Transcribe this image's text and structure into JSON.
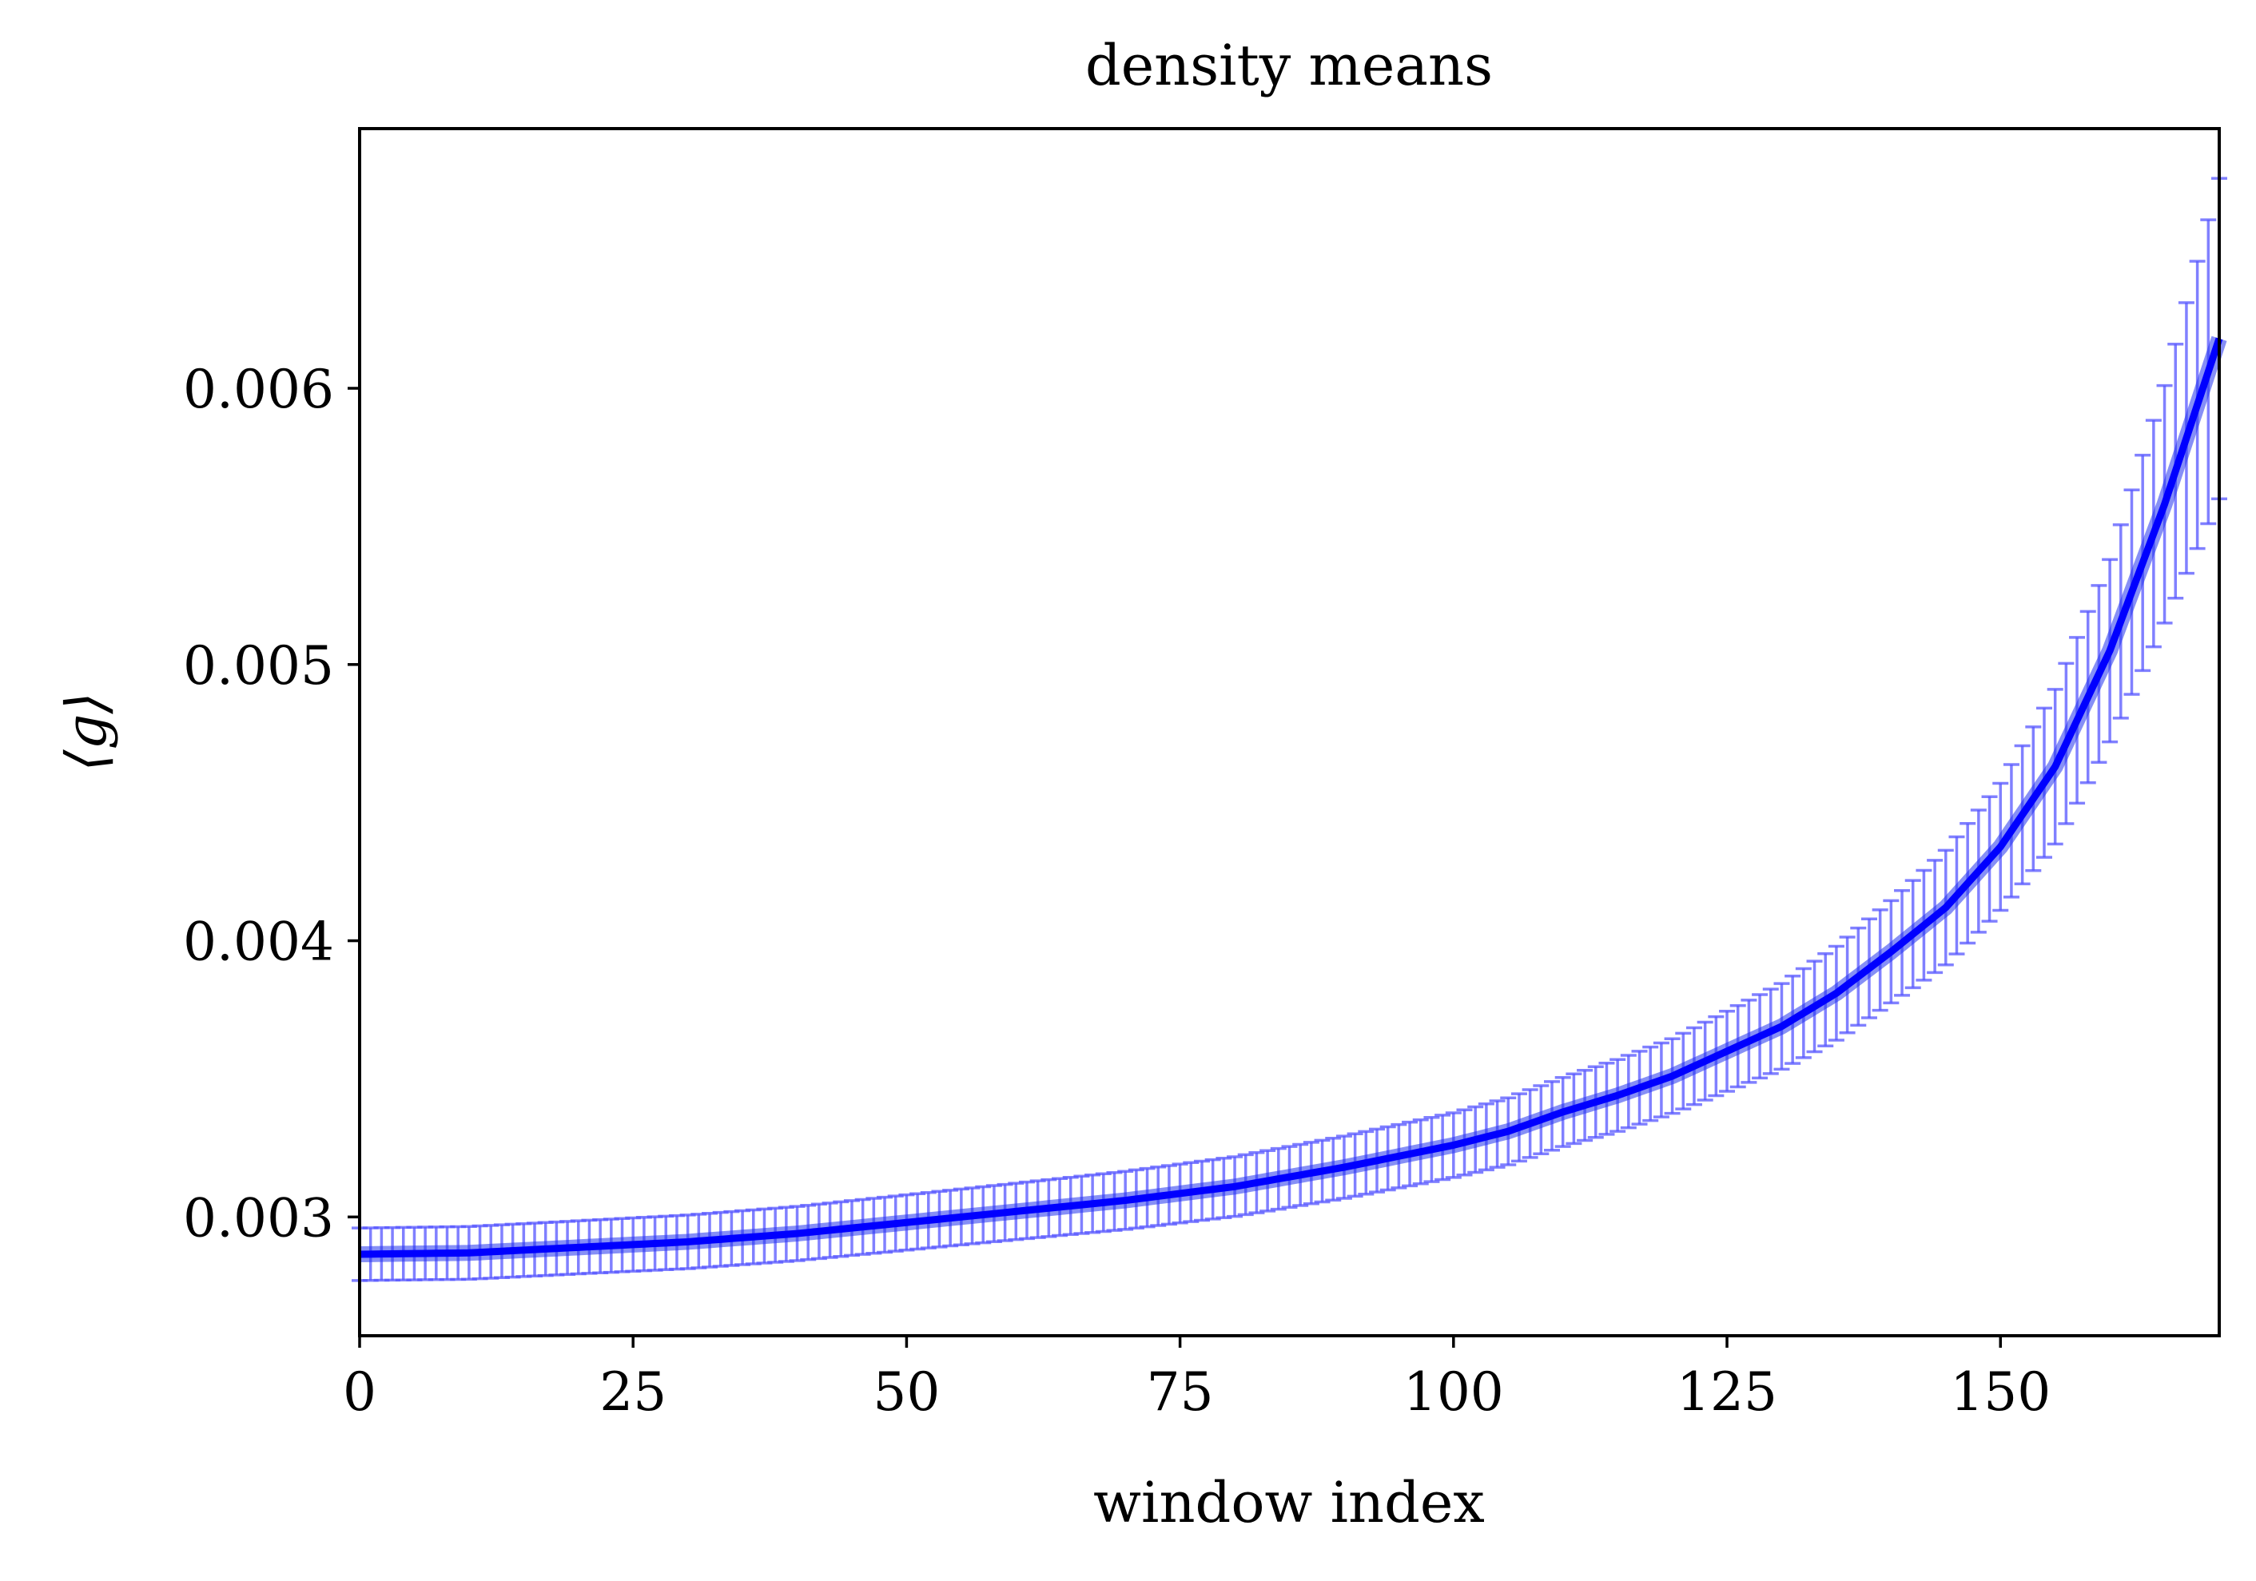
{
  "chart_data": {
    "type": "line",
    "title": "density means",
    "xlabel": "window index",
    "ylabel": "⟨g⟩",
    "xlim": [
      0,
      170
    ],
    "ylim": [
      0.00257,
      0.00694
    ],
    "xticks": [
      0,
      25,
      50,
      75,
      100,
      125,
      150
    ],
    "xtick_labels": [
      "0",
      "25",
      "50",
      "75",
      "100",
      "125",
      "150"
    ],
    "yticks": [
      0.003,
      0.004,
      0.005,
      0.006
    ],
    "ytick_labels": [
      "0.003",
      "0.004",
      "0.005",
      "0.006"
    ],
    "grid": false,
    "error_bars": true,
    "colors": {
      "line": "#0000ff",
      "errorbar": "#5555ff",
      "axis": "#000000"
    },
    "series_points": [
      [
        0,
        0.002865
      ],
      [
        10,
        0.00287
      ],
      [
        20,
        0.00289
      ],
      [
        30,
        0.00291
      ],
      [
        40,
        0.00294
      ],
      [
        50,
        0.00298
      ],
      [
        60,
        0.00302
      ],
      [
        70,
        0.00306
      ],
      [
        80,
        0.00311
      ],
      [
        90,
        0.00318
      ],
      [
        100,
        0.00326
      ],
      [
        105,
        0.00331
      ],
      [
        110,
        0.00338
      ],
      [
        115,
        0.00344
      ],
      [
        120,
        0.00351
      ],
      [
        125,
        0.0036
      ],
      [
        130,
        0.00369
      ],
      [
        135,
        0.00381
      ],
      [
        140,
        0.00396
      ],
      [
        145,
        0.00412
      ],
      [
        150,
        0.00434
      ],
      [
        155,
        0.00463
      ],
      [
        160,
        0.00505
      ],
      [
        165,
        0.00558
      ],
      [
        170,
        0.00618
      ]
    ],
    "error_points": [
      [
        0,
        9.5e-05
      ],
      [
        20,
        9.6e-05
      ],
      [
        40,
        9.8e-05
      ],
      [
        60,
        0.000102
      ],
      [
        80,
        0.000108
      ],
      [
        100,
        0.000117
      ],
      [
        110,
        0.000125
      ],
      [
        120,
        0.000135
      ],
      [
        130,
        0.000155
      ],
      [
        140,
        0.000185
      ],
      [
        150,
        0.00023
      ],
      [
        160,
        0.00033
      ],
      [
        165,
        0.00043
      ],
      [
        170,
        0.00058
      ]
    ],
    "n_windows": 171
  }
}
